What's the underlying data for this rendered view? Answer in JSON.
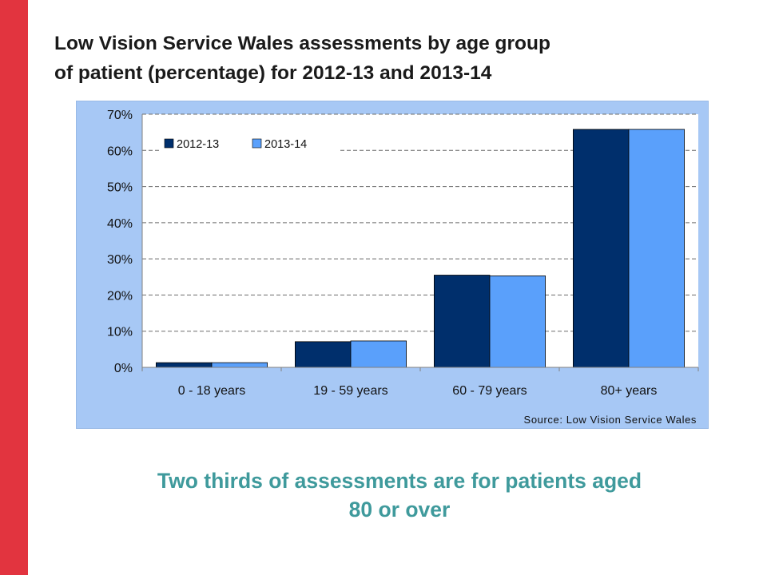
{
  "slide": {
    "title_line1": "Low Vision Service Wales assessments by age group",
    "title_line2": "of patient (percentage) for 2012-13 and 2013-14",
    "caption_line1": "Two thirds of assessments are for patients aged",
    "caption_line2": "80 or over",
    "accent_color": "#e2343f",
    "caption_color": "#3f9a9c"
  },
  "chart_data": {
    "type": "bar",
    "categories": [
      "0 - 18 years",
      "19 - 59 years",
      "60 - 79 years",
      "80+ years"
    ],
    "series": [
      {
        "name": "2012-13",
        "values": [
          1.3,
          7.1,
          25.5,
          65.8
        ],
        "color": "#002f6c"
      },
      {
        "name": "2013-14",
        "values": [
          1.3,
          7.3,
          25.3,
          65.8
        ],
        "color": "#5aa0fb"
      }
    ],
    "y_ticks": [
      "0%",
      "10%",
      "20%",
      "30%",
      "40%",
      "50%",
      "60%",
      "70%"
    ],
    "ylim": [
      0,
      70
    ],
    "ytick_step": 10,
    "grid": true,
    "legend_position": "top-left",
    "source": "Source: Low Vision Service Wales",
    "panel_color": "#a7c8f5"
  }
}
